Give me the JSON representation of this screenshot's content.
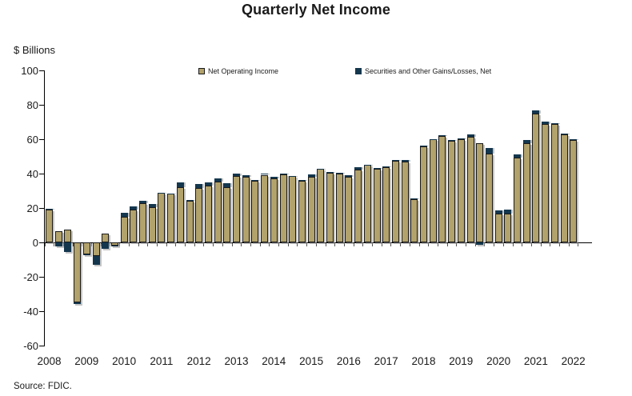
{
  "chart_data": {
    "type": "bar",
    "stacked": true,
    "title": "Quarterly Net Income",
    "ylabel": "$ Billions",
    "source": "Source: FDIC.",
    "grid": false,
    "legend_position": "top-inside",
    "ylim": [
      -60,
      100
    ],
    "y_ticks": [
      100,
      80,
      60,
      40,
      20,
      0,
      -20,
      -40,
      -60
    ],
    "x_tick_labels": [
      "2008",
      "2009",
      "2010",
      "2011",
      "2012",
      "2013",
      "2014",
      "2015",
      "2016",
      "2017",
      "2018",
      "2019",
      "2020",
      "2021",
      "2022"
    ],
    "colors": {
      "net_operating_income": "#b2a26b",
      "securities_and_other": "#14374e",
      "axis": "#000000",
      "text": "#1a1a1a"
    },
    "quarters": [
      "2008 Q1",
      "2008 Q2",
      "2008 Q3",
      "2008 Q4",
      "2009 Q1",
      "2009 Q2",
      "2009 Q3",
      "2009 Q4",
      "2010 Q1",
      "2010 Q2",
      "2010 Q3",
      "2010 Q4",
      "2011 Q1",
      "2011 Q2",
      "2011 Q3",
      "2011 Q4",
      "2012 Q1",
      "2012 Q2",
      "2012 Q3",
      "2012 Q4",
      "2013 Q1",
      "2013 Q2",
      "2013 Q3",
      "2013 Q4",
      "2014 Q1",
      "2014 Q2",
      "2014 Q3",
      "2014 Q4",
      "2015 Q1",
      "2015 Q2",
      "2015 Q3",
      "2015 Q4",
      "2016 Q1",
      "2016 Q2",
      "2016 Q3",
      "2016 Q4",
      "2017 Q1",
      "2017 Q2",
      "2017 Q3",
      "2017 Q4",
      "2018 Q1",
      "2018 Q2",
      "2018 Q3",
      "2018 Q4",
      "2019 Q1",
      "2019 Q2",
      "2019 Q3",
      "2019 Q4",
      "2020 Q1",
      "2020 Q2",
      "2020 Q3",
      "2020 Q4",
      "2021 Q1",
      "2021 Q2",
      "2021 Q3",
      "2021 Q4",
      "2022 Q1"
    ],
    "series": [
      {
        "name": "Net Operating Income",
        "color_key": "net_operating_income",
        "values": [
          19.0,
          6.5,
          7.5,
          -35.0,
          -7.0,
          -8.0,
          5.0,
          -2.0,
          15.0,
          19.2,
          22.6,
          20.6,
          28.7,
          28.2,
          32.2,
          24.4,
          31.8,
          32.8,
          35.2,
          32.2,
          38.4,
          38.1,
          35.7,
          39.3,
          37.0,
          39.6,
          38.4,
          35.7,
          38.3,
          42.6,
          40.4,
          40.2,
          38.0,
          42.4,
          44.9,
          42.7,
          43.5,
          47.5,
          46.9,
          25.0,
          55.7,
          59.8,
          62.0,
          59.1,
          60.0,
          61.3,
          57.7,
          51.8,
          16.6,
          16.9,
          49.3,
          57.5,
          74.7,
          68.7,
          69.0,
          62.9,
          59.4
        ]
      },
      {
        "name": "Securities and Other Gains/Losses, Net",
        "color_key": "securities_and_other",
        "values": [
          0.5,
          -2.5,
          -5.5,
          -1.0,
          -0.3,
          -5.0,
          -3.5,
          -0.5,
          2.0,
          1.9,
          1.7,
          1.6,
          0.3,
          0.3,
          2.6,
          0.4,
          2.0,
          1.9,
          2.2,
          2.0,
          1.6,
          1.0,
          0.4,
          0.5,
          1.3,
          0.4,
          0.4,
          0.4,
          1.2,
          0.4,
          0.4,
          0.4,
          1.2,
          1.5,
          0.4,
          0.4,
          0.5,
          0.4,
          1.2,
          0.4,
          0.4,
          0.4,
          0.4,
          0.5,
          0.5,
          1.4,
          -1.5,
          3.1,
          1.8,
          2.0,
          2.0,
          2.2,
          2.0,
          1.5,
          0.4,
          0.5,
          0.4
        ]
      }
    ]
  }
}
